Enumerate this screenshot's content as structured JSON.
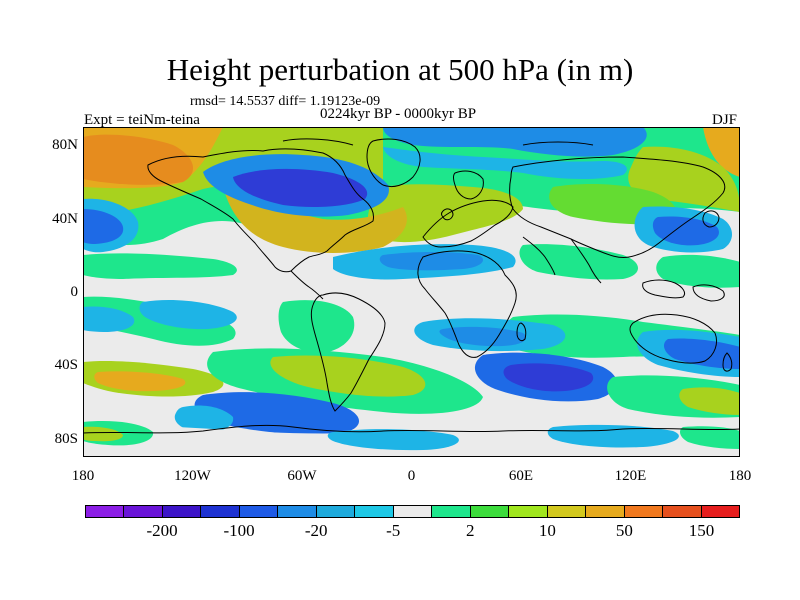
{
  "title": "Height perturbation at 500 hPa (in m)",
  "stats": "rmsd= 14.5537 diff= 1.19123e-09",
  "experiment": "Expt = teiNm-teina",
  "period": "0224kyr BP - 0000kyr BP",
  "season": "DJF",
  "lat_ticks": [
    {
      "label": "80N",
      "lat": 80
    },
    {
      "label": "40N",
      "lat": 40
    },
    {
      "label": "0",
      "lat": 0
    },
    {
      "label": "40S",
      "lat": -40
    },
    {
      "label": "80S",
      "lat": -80
    }
  ],
  "lon_ticks": [
    {
      "label": "180",
      "lon": -180
    },
    {
      "label": "120W",
      "lon": -120
    },
    {
      "label": "60W",
      "lon": -60
    },
    {
      "label": "0",
      "lon": 0
    },
    {
      "label": "60E",
      "lon": 60
    },
    {
      "label": "120E",
      "lon": 120
    },
    {
      "label": "180",
      "lon": 180
    }
  ],
  "colorbar": {
    "colors": [
      "#8c1ee6",
      "#6a14d8",
      "#3c14c8",
      "#1e32d2",
      "#1e5ae6",
      "#1e8ce6",
      "#1eaadc",
      "#1ec8e6",
      "#ebebeb",
      "#1ee68c",
      "#3cdc3c",
      "#a0e61e",
      "#d2c81e",
      "#e6aa1e",
      "#f0781e",
      "#e6501e",
      "#e61e1e"
    ],
    "labels": [
      "-200",
      "-100",
      "-20",
      "-5",
      "2",
      "10",
      "50",
      "150"
    ]
  },
  "palette": {
    "dark_blue": "#2e3cd6",
    "blue": "#1e6ae6",
    "light_blue": "#1eb4e6",
    "neutral": "#ebebeb",
    "green": "#1ee68c",
    "light_green": "#64dc32",
    "yellow_green": "#a8d21e",
    "orange": "#e6aa1e",
    "coastline": "#000000"
  }
}
